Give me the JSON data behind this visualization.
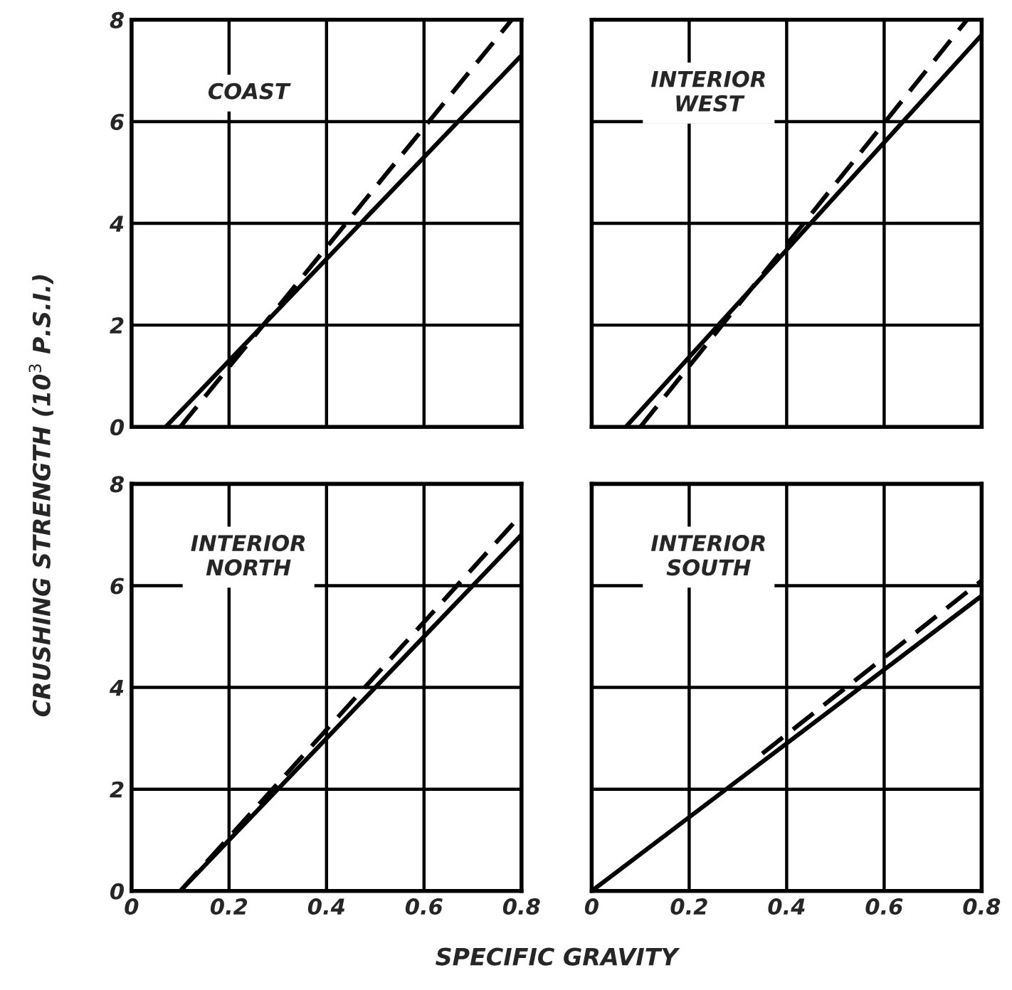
{
  "chart_data": [
    {
      "type": "line",
      "title": "COAST",
      "ylabel": "CRUSHING STRENGTH (10$^{3}$ P.S.I.)",
      "xlim": [
        0,
        0.8
      ],
      "ylim": [
        0,
        8
      ],
      "xticks": [
        0,
        0.2,
        0.4,
        0.6,
        0.8
      ],
      "yticks": [
        0,
        2,
        4,
        6,
        8
      ],
      "grid": true,
      "tick_labels": "y",
      "legend": false,
      "series": [
        {
          "color": "#000000",
          "line_style": "solid",
          "x": [
            0.07,
            0.8
          ],
          "values": [
            0,
            7.3
          ]
        },
        {
          "color": "#000000",
          "line_style": "dashed",
          "x": [
            0.1,
            0.78
          ],
          "values": [
            0,
            8
          ]
        }
      ]
    },
    {
      "type": "line",
      "title": "INTERIOR\nWEST",
      "xlim": [
        0,
        0.8
      ],
      "ylim": [
        0,
        8
      ],
      "xticks": [
        0,
        0.2,
        0.4,
        0.6,
        0.8
      ],
      "yticks": [
        0,
        2,
        4,
        6,
        8
      ],
      "grid": true,
      "tick_labels": false,
      "legend": false,
      "series": [
        {
          "color": "#000000",
          "line_style": "solid",
          "x": [
            0.07,
            0.8
          ],
          "values": [
            0,
            7.7
          ]
        },
        {
          "color": "#000000",
          "line_style": "dashed",
          "x": [
            0.1,
            0.77
          ],
          "values": [
            0,
            8
          ]
        }
      ]
    },
    {
      "type": "line",
      "title": "INTERIOR\nNORTH",
      "xlabel": "SPECIFIC GRAVITY",
      "xlim": [
        0,
        0.8
      ],
      "ylim": [
        0,
        8
      ],
      "xticks": [
        0,
        0.2,
        0.4,
        0.6,
        0.8
      ],
      "yticks": [
        0,
        2,
        4,
        6,
        8
      ],
      "grid": true,
      "legend": false,
      "series": [
        {
          "color": "#000000",
          "line_style": "solid",
          "x": [
            0.1,
            0.8
          ],
          "values": [
            0,
            7.0
          ]
        },
        {
          "color": "#000000",
          "line_style": "dashed",
          "x": [
            0.1,
            0.8
          ],
          "values": [
            0,
            7.4
          ]
        }
      ]
    },
    {
      "type": "line",
      "title": "INTERIOR\nSOUTH",
      "xlim": [
        0,
        0.8
      ],
      "ylim": [
        0,
        8
      ],
      "xticks": [
        0,
        0.2,
        0.4,
        0.6,
        0.8
      ],
      "yticks": [
        0,
        2,
        4,
        6,
        8
      ],
      "grid": true,
      "tick_labels": "x",
      "legend": false,
      "series": [
        {
          "color": "#000000",
          "line_style": "solid",
          "x": [
            0,
            0.8
          ],
          "values": [
            0,
            5.8
          ]
        },
        {
          "color": "#000000",
          "line_style": "dashed",
          "x": [
            0.35,
            0.8
          ],
          "values": [
            2.7,
            6.1
          ]
        }
      ]
    }
  ]
}
